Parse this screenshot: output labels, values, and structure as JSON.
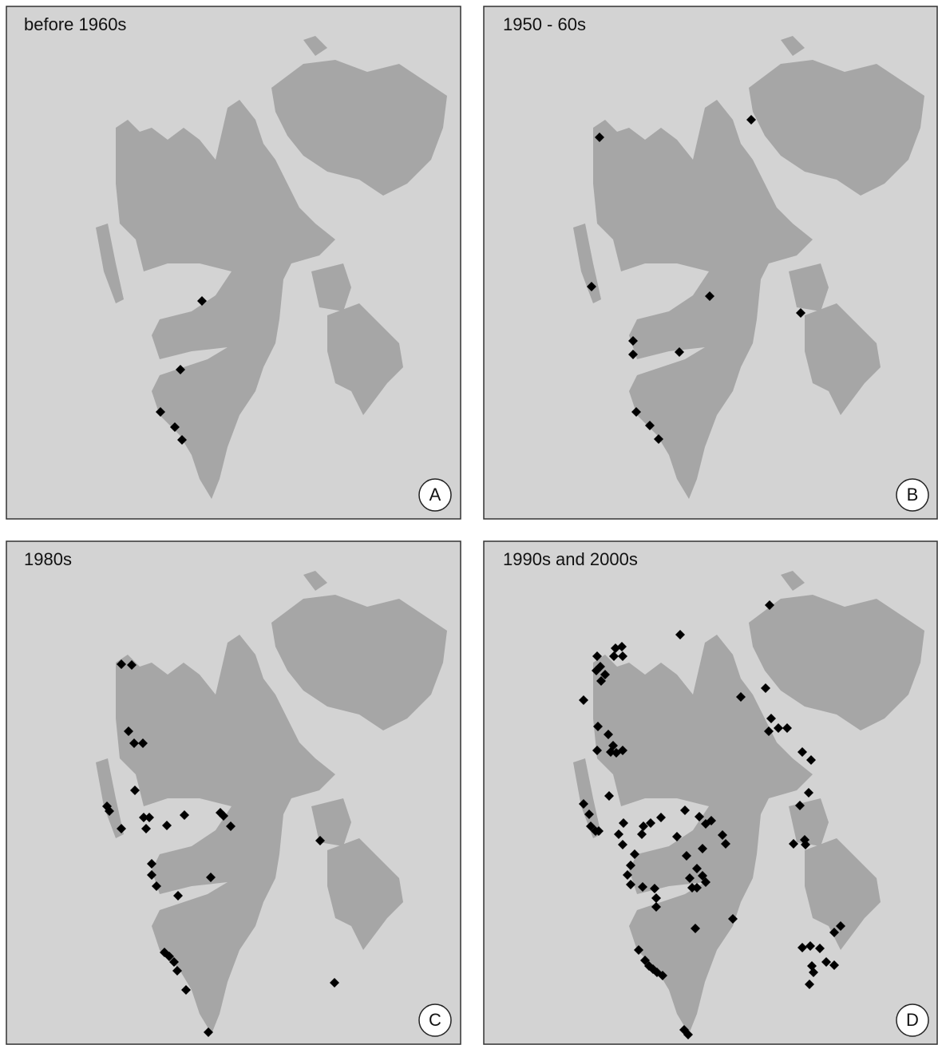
{
  "panels": [
    {
      "title": "before 1960s",
      "label": "A"
    },
    {
      "title": "1950 - 60s",
      "label": "B"
    },
    {
      "title": "1980s",
      "label": "C"
    },
    {
      "title": "1990s and 2000s",
      "label": "D"
    }
  ]
}
